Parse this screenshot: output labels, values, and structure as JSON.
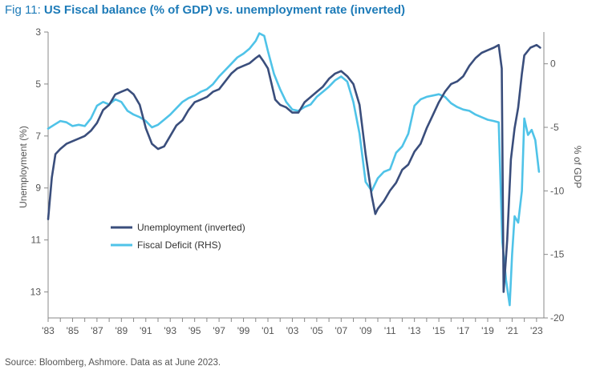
{
  "header": {
    "fig_label": "Fig 11: ",
    "title": "US Fiscal balance (% of GDP) vs. unemployment rate (inverted)"
  },
  "footer": {
    "source": "Source: Bloomberg, Ashmore. Data as at June 2023."
  },
  "colors": {
    "unemployment": "#3a4e7c",
    "fiscal": "#4fc3e8",
    "axis": "#888888",
    "text": "#555555"
  },
  "chart_data": {
    "type": "line",
    "title": "US Fiscal balance (% of GDP) vs. unemployment rate (inverted)",
    "grid": false,
    "legend_position": "lower-left",
    "x_axis": {
      "type": "date",
      "range": [
        1983,
        2023.6
      ],
      "tick_labels": [
        "'83",
        "'85",
        "'87",
        "'89",
        "'91",
        "'93",
        "'95",
        "'97",
        "'99",
        "'01",
        "'03",
        "'05",
        "'07",
        "'09",
        "'11",
        "'13",
        "'15",
        "'17",
        "'19",
        "'21",
        "'23"
      ]
    },
    "y_left": {
      "label": "Unemployment (%)",
      "inverted": true,
      "range": [
        3,
        14
      ],
      "ticks": [
        3,
        5,
        7,
        9,
        11,
        13
      ]
    },
    "y_right": {
      "label": "% of GDP",
      "range": [
        -20,
        2.5
      ],
      "ticks": [
        0,
        -5,
        -10,
        -15,
        -20
      ]
    },
    "series": [
      {
        "name": "Unemployment (inverted)",
        "axis": "left",
        "x": [
          1983.0,
          1983.3,
          1983.6,
          1984.0,
          1984.5,
          1985.0,
          1985.5,
          1986.0,
          1986.5,
          1987.0,
          1987.5,
          1988.0,
          1988.5,
          1989.0,
          1989.5,
          1990.0,
          1990.5,
          1991.0,
          1991.5,
          1992.0,
          1992.5,
          1993.0,
          1993.5,
          1994.0,
          1994.5,
          1995.0,
          1995.5,
          1996.0,
          1996.5,
          1997.0,
          1997.5,
          1998.0,
          1998.5,
          1999.0,
          1999.5,
          2000.0,
          2000.3,
          2000.6,
          2001.0,
          2001.3,
          2001.6,
          2002.0,
          2002.5,
          2003.0,
          2003.5,
          2004.0,
          2004.5,
          2005.0,
          2005.5,
          2006.0,
          2006.5,
          2007.0,
          2007.5,
          2008.0,
          2008.5,
          2009.0,
          2009.5,
          2009.8,
          2010.0,
          2010.5,
          2011.0,
          2011.5,
          2012.0,
          2012.5,
          2013.0,
          2013.5,
          2014.0,
          2014.5,
          2015.0,
          2015.5,
          2016.0,
          2016.5,
          2017.0,
          2017.5,
          2018.0,
          2018.5,
          2019.0,
          2019.5,
          2019.9,
          2020.15,
          2020.3,
          2020.6,
          2020.9,
          2021.2,
          2021.5,
          2021.8,
          2022.0,
          2022.5,
          2023.0,
          2023.3
        ],
        "values": [
          10.2,
          8.6,
          7.7,
          7.5,
          7.3,
          7.2,
          7.1,
          7.0,
          6.8,
          6.5,
          6.0,
          5.8,
          5.4,
          5.3,
          5.2,
          5.4,
          5.8,
          6.7,
          7.3,
          7.5,
          7.4,
          7.0,
          6.6,
          6.4,
          6.0,
          5.7,
          5.6,
          5.5,
          5.3,
          5.2,
          4.9,
          4.6,
          4.4,
          4.3,
          4.2,
          4.0,
          3.9,
          4.1,
          4.4,
          5.0,
          5.6,
          5.8,
          5.9,
          6.1,
          6.1,
          5.7,
          5.5,
          5.3,
          5.1,
          4.8,
          4.6,
          4.5,
          4.7,
          5.0,
          5.8,
          7.7,
          9.3,
          10.0,
          9.8,
          9.5,
          9.1,
          8.8,
          8.3,
          8.1,
          7.6,
          7.3,
          6.7,
          6.2,
          5.7,
          5.3,
          5.0,
          4.9,
          4.7,
          4.3,
          4.0,
          3.8,
          3.7,
          3.6,
          3.5,
          4.4,
          13.0,
          11.0,
          7.9,
          6.7,
          5.9,
          4.6,
          3.9,
          3.6,
          3.5,
          3.6
        ]
      },
      {
        "name": "Fiscal Deficit (RHS)",
        "axis": "right",
        "x": [
          1983.0,
          1983.5,
          1984.0,
          1984.5,
          1985.0,
          1985.5,
          1986.0,
          1986.5,
          1987.0,
          1987.5,
          1988.0,
          1988.5,
          1989.0,
          1989.5,
          1990.0,
          1990.5,
          1991.0,
          1991.5,
          1992.0,
          1992.5,
          1993.0,
          1993.5,
          1994.0,
          1994.5,
          1995.0,
          1995.5,
          1996.0,
          1996.5,
          1997.0,
          1997.5,
          1998.0,
          1998.5,
          1999.0,
          1999.5,
          2000.0,
          2000.3,
          2000.7,
          2001.0,
          2001.5,
          2002.0,
          2002.5,
          2003.0,
          2003.5,
          2004.0,
          2004.5,
          2005.0,
          2005.5,
          2006.0,
          2006.5,
          2007.0,
          2007.5,
          2008.0,
          2008.5,
          2009.0,
          2009.5,
          2010.0,
          2010.5,
          2011.0,
          2011.5,
          2012.0,
          2012.5,
          2013.0,
          2013.5,
          2014.0,
          2014.5,
          2015.0,
          2015.5,
          2016.0,
          2016.5,
          2017.0,
          2017.5,
          2018.0,
          2018.5,
          2019.0,
          2019.5,
          2019.9,
          2020.2,
          2020.5,
          2020.8,
          2021.0,
          2021.2,
          2021.5,
          2021.8,
          2022.0,
          2022.3,
          2022.6,
          2022.9,
          2023.2
        ],
        "values": [
          -5.1,
          -4.8,
          -4.5,
          -4.6,
          -4.9,
          -4.8,
          -4.9,
          -4.3,
          -3.3,
          -3.0,
          -3.2,
          -2.8,
          -3.0,
          -3.7,
          -4.0,
          -4.2,
          -4.5,
          -5.0,
          -4.8,
          -4.4,
          -4.0,
          -3.5,
          -3.0,
          -2.7,
          -2.5,
          -2.2,
          -2.0,
          -1.6,
          -1.0,
          -0.5,
          0.0,
          0.5,
          0.8,
          1.2,
          1.8,
          2.4,
          2.2,
          1.0,
          -0.8,
          -2.0,
          -3.0,
          -3.6,
          -3.7,
          -3.4,
          -3.2,
          -2.6,
          -2.2,
          -1.8,
          -1.3,
          -1.0,
          -1.4,
          -3.0,
          -5.5,
          -9.3,
          -10.0,
          -9.0,
          -8.5,
          -8.3,
          -7.0,
          -6.5,
          -5.5,
          -3.3,
          -2.8,
          -2.6,
          -2.5,
          -2.4,
          -2.6,
          -3.1,
          -3.4,
          -3.6,
          -3.7,
          -4.0,
          -4.2,
          -4.4,
          -4.5,
          -4.6,
          -14.0,
          -17.0,
          -19.0,
          -15.0,
          -12.0,
          -12.5,
          -10.0,
          -4.3,
          -5.6,
          -5.2,
          -6.0,
          -8.5
        ]
      }
    ]
  }
}
